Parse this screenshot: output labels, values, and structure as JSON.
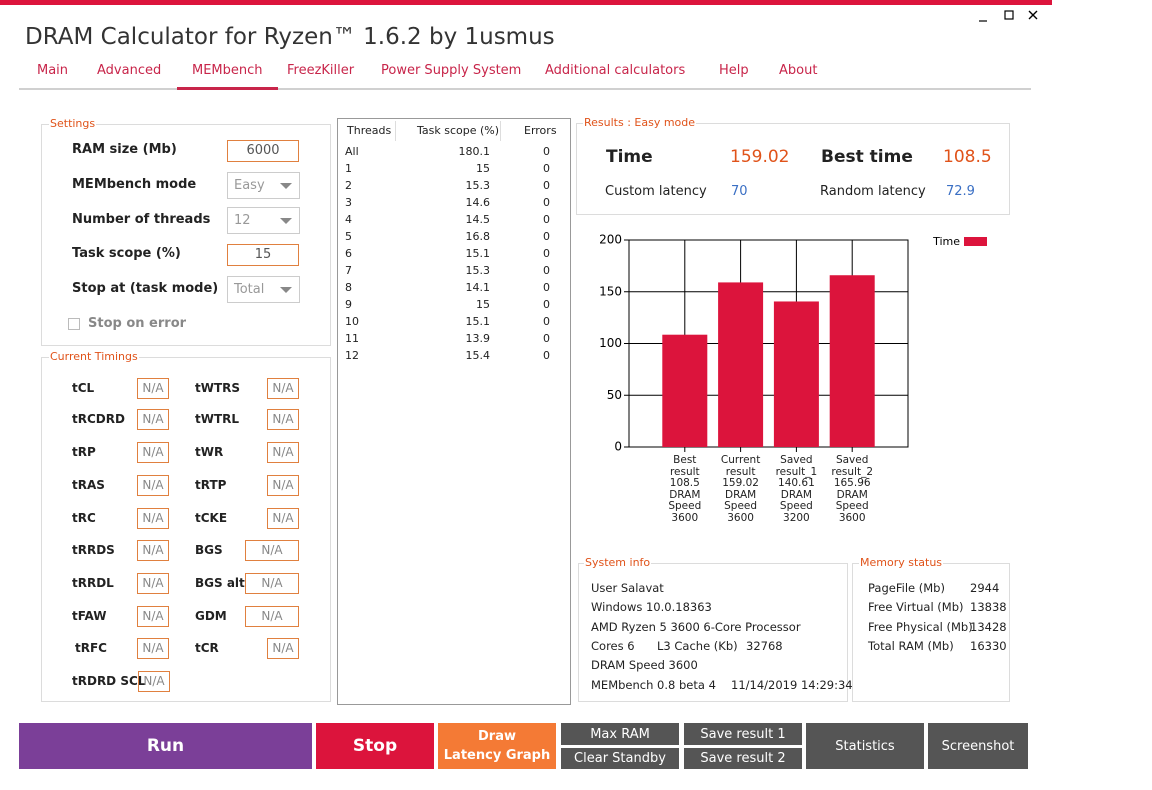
{
  "window": {
    "title": "DRAM Calculator for Ryzen™ 1.6.2 by 1usmus"
  },
  "tabs": [
    "Main",
    "Advanced",
    "MEMbench",
    "FreezKiller",
    "Power Supply System",
    "Additional calculators",
    "Help",
    "About"
  ],
  "active_tab": 2,
  "settings": {
    "title": "Settings",
    "fields": [
      {
        "label": "RAM size (Mb)",
        "value": 6000,
        "kind": "input"
      },
      {
        "label": "MEMbench mode",
        "value": "Easy",
        "kind": "combo"
      },
      {
        "label": "Number of threads",
        "value": 12,
        "kind": "combo"
      },
      {
        "label": "Task scope (%)",
        "value": 15,
        "kind": "input"
      },
      {
        "label": "Stop at (task mode)",
        "value": "Total",
        "kind": "combo"
      }
    ],
    "stop_on_error": "Stop on error"
  },
  "timings": {
    "title": "Current Timings",
    "left": [
      {
        "label": "tCL",
        "value": "N/A"
      },
      {
        "label": "tRCDRD",
        "value": "N/A"
      },
      {
        "label": "tRP",
        "value": "N/A"
      },
      {
        "label": "tRAS",
        "value": "N/A"
      },
      {
        "label": "tRC",
        "value": "N/A"
      },
      {
        "label": "tRRDS",
        "value": "N/A"
      },
      {
        "label": "tRRDL",
        "value": "N/A"
      },
      {
        "label": "tFAW",
        "value": "N/A"
      },
      {
        "label": "tRFC",
        "value": "N/A"
      },
      {
        "label": "tRDRD SCL",
        "value": "N/A"
      }
    ],
    "right": [
      {
        "label": "tWTRS",
        "value": "N/A"
      },
      {
        "label": "tWTRL",
        "value": "N/A"
      },
      {
        "label": "tWR",
        "value": "N/A"
      },
      {
        "label": "tRTP",
        "value": "N/A"
      },
      {
        "label": "tCKE",
        "value": "N/A"
      },
      {
        "label": "BGS",
        "value": "N/A"
      },
      {
        "label": "BGS alt",
        "value": "N/A"
      },
      {
        "label": "GDM",
        "value": "N/A"
      },
      {
        "label": "tCR",
        "value": "N/A"
      }
    ]
  },
  "threads_table": {
    "columns": [
      "Threads",
      "Task scope (%)",
      "Errors"
    ],
    "rows": [
      [
        "All",
        180.1,
        0
      ],
      [
        1,
        15,
        0
      ],
      [
        2,
        15.3,
        0
      ],
      [
        3,
        14.6,
        0
      ],
      [
        4,
        14.5,
        0
      ],
      [
        5,
        16.8,
        0
      ],
      [
        6,
        15.1,
        0
      ],
      [
        7,
        15.3,
        0
      ],
      [
        8,
        14.1,
        0
      ],
      [
        9,
        15,
        0
      ],
      [
        10,
        15.1,
        0
      ],
      [
        11,
        13.9,
        0
      ],
      [
        12,
        15.4,
        0
      ]
    ]
  },
  "results": {
    "title": "Results : Easy mode",
    "time_label": "Time",
    "time": 159.02,
    "best_time_label": "Best time",
    "best_time": 108.5,
    "custom_latency_label": "Custom latency",
    "custom_latency": 70,
    "random_latency_label": "Random latency",
    "random_latency": 72.9
  },
  "chart_data": {
    "type": "bar",
    "categories": [
      "Best\nresult\n108.5\nDRAM\nSpeed\n3600",
      "Current\nresult\n159.02\nDRAM\nSpeed\n3600",
      "Saved\nresult_1\n140.61\nDRAM\nSpeed\n3200",
      "Saved\nresult_2\n165.96\nDRAM\nSpeed\n3600"
    ],
    "series": [
      {
        "name": "Time",
        "color": "#dc143c",
        "values": [
          108.5,
          159.02,
          140.61,
          165.96
        ]
      }
    ],
    "ylim": [
      0,
      200
    ],
    "yticks": [
      0,
      50,
      100,
      150,
      200
    ],
    "grid": true,
    "legend": "top-right"
  },
  "system_info": {
    "title": "System info",
    "rows": [
      [
        "User Salavat"
      ],
      [
        "Windows 10.0.18363"
      ],
      [
        "AMD Ryzen 5 3600 6-Core Processor"
      ],
      [
        "Cores 6",
        "L3 Cache (Kb)",
        32768
      ],
      [
        "DRAM Speed 3600"
      ],
      [
        "MEMbench 0.8 beta 4",
        "11/14/2019 14:29:34"
      ]
    ]
  },
  "memory_status": {
    "title": "Memory status",
    "rows": [
      [
        "PageFile (Mb)",
        2944
      ],
      [
        "Free Virtual (Mb)",
        13838
      ],
      [
        "Free Physical (Mb)",
        13428
      ],
      [
        "Total RAM (Mb)",
        16330
      ]
    ]
  },
  "buttons": [
    "Run",
    "Stop",
    "Draw\nLatency Graph",
    "Max RAM",
    "Clear Standby",
    "Save result 1",
    "Save result 2",
    "Statistics",
    "Screenshot"
  ]
}
